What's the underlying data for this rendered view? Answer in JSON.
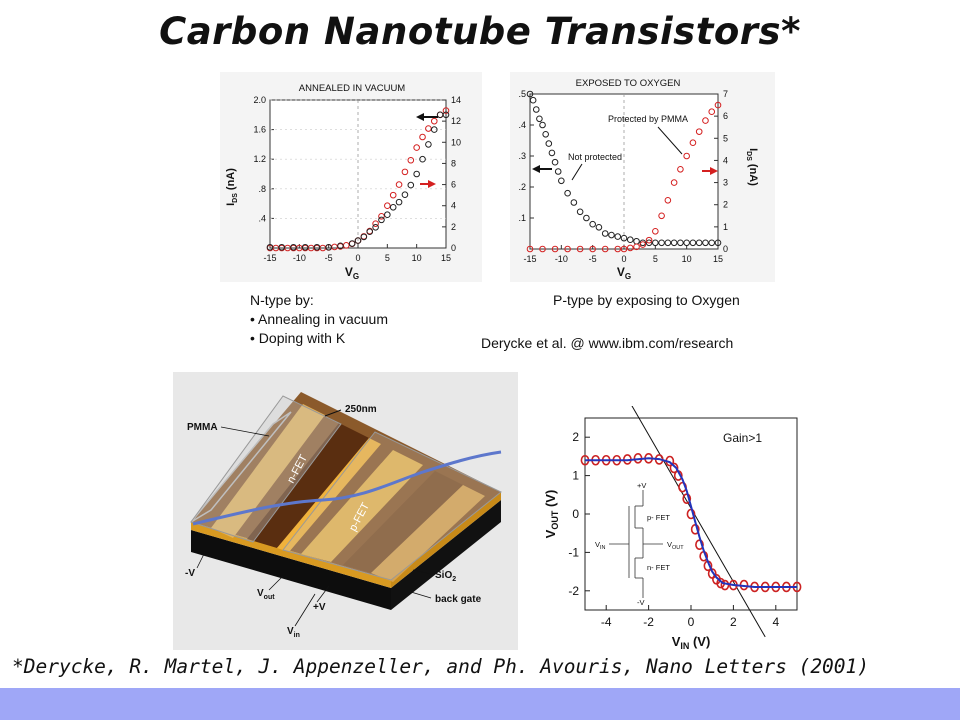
{
  "slide": {
    "title": "Carbon Nanotube Transistors*",
    "citation": "*Derycke, R. Martel, J. Appenzeller, and Ph. Avouris, Nano Letters (2001)",
    "footer_color": "#9fa7f7"
  },
  "annealed_chart": {
    "title": "ANNEALED IN VACUUM",
    "xlabel": "V",
    "xlabel_sub": "G",
    "ylabel": "I",
    "ylabel_sub": "DS",
    "ylabel_unit": "(nA)",
    "x_ticks": [
      "-15",
      "-10",
      "-5",
      "0",
      "5",
      "10",
      "15"
    ],
    "y_left_ticks": [
      ".4",
      ".8",
      "1.2",
      "1.6",
      "2.0"
    ],
    "y_right_ticks": [
      "0",
      "2",
      "4",
      "6",
      "8",
      "10",
      "12",
      "14"
    ]
  },
  "oxygen_chart": {
    "title": "EXPOSED TO OXYGEN",
    "xlabel": "V",
    "xlabel_sub": "G",
    "ylabel": "I",
    "ylabel_sub": "DS",
    "ylabel_unit": "(nA)",
    "x_ticks": [
      "-15",
      "-10",
      "-5",
      "0",
      "5",
      "10",
      "15"
    ],
    "y_left_ticks": [
      ".1",
      ".2",
      ".3",
      ".4",
      ".5"
    ],
    "y_right_ticks": [
      "0",
      "1",
      "2",
      "3",
      "4",
      "5",
      "6",
      "7"
    ],
    "annotation_protected": "Protected by PMMA",
    "annotation_not_protected": "Not protected"
  },
  "notes": {
    "ntype_heading": "N-type by:",
    "ntype_items": [
      "• Annealing in vacuum",
      "• Doping with K"
    ],
    "ptype": "P-type by exposing to Oxygen",
    "credit": "Derycke et al. @ www.ibm.com/research"
  },
  "device_figure": {
    "pmma": "PMMA",
    "gap": "250nm",
    "nfet": "n-FET",
    "pfet": "p-FET",
    "sio2": "SiO",
    "sio2_sub": "2",
    "back_gate": "back gate",
    "minus_v": "-V",
    "plus_v": "+V",
    "v_out": "V",
    "v_out_sub": "out",
    "v_in": "V",
    "v_in_sub": "in"
  },
  "inverter_chart": {
    "annotation": "Gain>1",
    "xlabel": "V",
    "xlabel_sub": "IN",
    "xlabel_unit": " (V)",
    "ylabel": "V",
    "ylabel_sub": "OUT",
    "ylabel_unit": " (V)",
    "x_ticks": [
      "-4",
      "-2",
      "0",
      "2",
      "4"
    ],
    "y_ticks": [
      "2",
      "1",
      "0",
      "-1",
      "-2"
    ],
    "circuit_plus_v": "+V",
    "circuit_minus_v": "-V",
    "circuit_pfet": "p- FET",
    "circuit_nfet": "n- FET",
    "circuit_vin": "V",
    "circuit_vin_sub": "IN",
    "circuit_vout": "V",
    "circuit_vout_sub": "OUT"
  },
  "chart_data": [
    {
      "type": "scatter",
      "title": "ANNEALED IN VACUUM",
      "xlabel": "VG",
      "ylabel": "IDS (nA)",
      "xlim": [
        -15,
        15
      ],
      "ylim_left": [
        0,
        2.0
      ],
      "ylim_right": [
        0,
        14
      ],
      "series": [
        {
          "color": "#d42020",
          "axis": "right",
          "x": [
            -15,
            -14,
            -13,
            -12,
            -11,
            -10,
            -9,
            -8,
            -7,
            -6,
            -5,
            -4,
            -3,
            -2,
            -1,
            0,
            1,
            2,
            3,
            4,
            5,
            6,
            7,
            8,
            9,
            10,
            11,
            12,
            13,
            14,
            15
          ],
          "y": [
            0,
            0,
            0,
            0,
            0,
            0,
            0,
            0,
            0,
            0,
            0.05,
            0.1,
            0.15,
            0.25,
            0.4,
            0.7,
            1.1,
            1.6,
            2.3,
            3.0,
            4.0,
            5.0,
            6.0,
            7.2,
            8.3,
            9.5,
            10.5,
            11.3,
            12.0,
            12.6,
            13.0
          ]
        },
        {
          "color": "#222222",
          "axis": "left",
          "x": [
            -15,
            -13,
            -11,
            -9,
            -7,
            -5,
            -3,
            -1,
            0,
            1,
            2,
            3,
            4,
            5,
            6,
            7,
            8,
            9,
            10,
            11,
            12,
            13,
            14,
            15
          ],
          "y": [
            0.01,
            0.01,
            0.01,
            0.01,
            0.01,
            0.01,
            0.03,
            0.06,
            0.1,
            0.15,
            0.22,
            0.28,
            0.38,
            0.45,
            0.55,
            0.62,
            0.72,
            0.85,
            1.0,
            1.2,
            1.4,
            1.6,
            1.8,
            1.8
          ]
        }
      ]
    },
    {
      "type": "scatter",
      "title": "EXPOSED TO OXYGEN",
      "xlabel": "VG",
      "ylabel": "IDS (nA)",
      "xlim": [
        -15,
        15
      ],
      "ylim_left": [
        0,
        0.5
      ],
      "ylim_right": [
        0,
        7
      ],
      "series": [
        {
          "name": "Not protected",
          "color": "#222222",
          "axis": "left",
          "x": [
            -15,
            -14.5,
            -14,
            -13.5,
            -13,
            -12.5,
            -12,
            -11.5,
            -11,
            -10.5,
            -10,
            -9,
            -8,
            -7,
            -6,
            -5,
            -4,
            -3,
            -2,
            -1,
            0,
            1,
            2,
            3,
            4,
            5,
            6,
            7,
            8,
            9,
            10,
            11,
            12,
            13,
            14,
            15
          ],
          "y": [
            0.5,
            0.48,
            0.45,
            0.42,
            0.4,
            0.37,
            0.34,
            0.31,
            0.28,
            0.25,
            0.22,
            0.18,
            0.15,
            0.12,
            0.1,
            0.08,
            0.07,
            0.05,
            0.045,
            0.04,
            0.035,
            0.03,
            0.025,
            0.02,
            0.02,
            0.02,
            0.02,
            0.02,
            0.02,
            0.02,
            0.02,
            0.02,
            0.02,
            0.02,
            0.02,
            0.02
          ]
        },
        {
          "name": "Protected by PMMA",
          "color": "#d42020",
          "axis": "right",
          "x": [
            -15,
            -13,
            -11,
            -9,
            -7,
            -5,
            -3,
            -1,
            0,
            1,
            2,
            3,
            4,
            5,
            6,
            7,
            8,
            9,
            10,
            11,
            12,
            13,
            14,
            15
          ],
          "y": [
            0,
            0,
            0,
            0,
            0,
            0,
            0,
            0,
            0,
            0.05,
            0.1,
            0.2,
            0.4,
            0.8,
            1.5,
            2.2,
            3.0,
            3.6,
            4.2,
            4.8,
            5.3,
            5.8,
            6.2,
            6.5
          ]
        }
      ]
    },
    {
      "type": "line",
      "title": "Gain>1",
      "xlabel": "VIN (V)",
      "ylabel": "VOUT (V)",
      "xlim": [
        -5,
        5
      ],
      "ylim": [
        -2.5,
        2.5
      ],
      "series": [
        {
          "color": "#2233bb",
          "x": [
            -5,
            -4,
            -3,
            -2,
            -1.5,
            -1,
            -0.7,
            -0.4,
            -0.2,
            0,
            0.2,
            0.4,
            0.6,
            0.8,
            1,
            1.2,
            1.5,
            2,
            3,
            4,
            5
          ],
          "y": [
            1.4,
            1.4,
            1.4,
            1.45,
            1.43,
            1.35,
            1.2,
            0.9,
            0.6,
            0.2,
            -0.2,
            -0.6,
            -0.95,
            -1.25,
            -1.5,
            -1.65,
            -1.8,
            -1.85,
            -1.9,
            -1.9,
            -1.9
          ]
        },
        {
          "color": "#cc2222",
          "x": [
            -5,
            -4.5,
            -4,
            -3.5,
            -3,
            -2.5,
            -2,
            -1.5,
            -1,
            -0.8,
            -0.6,
            -0.4,
            -0.2,
            0,
            0.2,
            0.4,
            0.6,
            0.8,
            1,
            1.2,
            1.4,
            1.6,
            2,
            2.5,
            3,
            3.5,
            4,
            4.5,
            5
          ],
          "y": [
            1.4,
            1.4,
            1.4,
            1.4,
            1.42,
            1.45,
            1.45,
            1.42,
            1.38,
            1.2,
            1.0,
            0.7,
            0.4,
            0.0,
            -0.4,
            -0.8,
            -1.1,
            -1.35,
            -1.55,
            -1.7,
            -1.8,
            -1.85,
            -1.85,
            -1.85,
            -1.9,
            -1.9,
            -1.9,
            -1.9,
            -1.9
          ]
        }
      ],
      "gain_line": {
        "x": [
          -3.5,
          3.5
        ],
        "y": [
          3.5,
          -3.2
        ]
      }
    }
  ]
}
